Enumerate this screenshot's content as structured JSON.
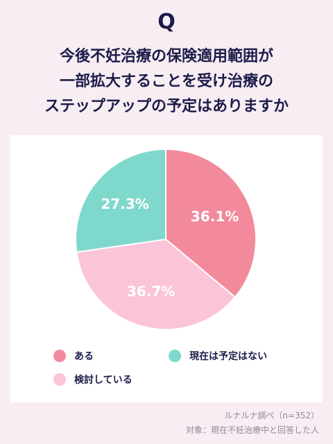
{
  "header": {
    "q_mark": "Q",
    "title_lines": [
      "今後不妊治療の保険適用範囲が",
      "一部拡大することを受け治療の",
      "ステップアップの予定はありますか"
    ]
  },
  "chart_data": {
    "type": "pie",
    "slices": [
      {
        "name": "ある",
        "value": 36.1,
        "label": "36.1%",
        "color": "#f28a9b"
      },
      {
        "name": "検討している",
        "value": 36.7,
        "label": "36.7%",
        "color": "#fbc4d8"
      },
      {
        "name": "現在は予定はない",
        "value": 27.3,
        "label": "27.3%",
        "color": "#7fd8cc"
      }
    ],
    "legend": [
      {
        "name": "ある",
        "color": "#f28a9b"
      },
      {
        "name": "現在は予定はない",
        "color": "#7fd8cc"
      },
      {
        "name": "検討している",
        "color": "#fbc4d8"
      }
    ],
    "start_angle_deg": 0,
    "direction": "clockwise"
  },
  "footer": {
    "source": "ルナルナ調べ（n=352）",
    "target": "対象：現在不妊治療中と回答した人"
  }
}
